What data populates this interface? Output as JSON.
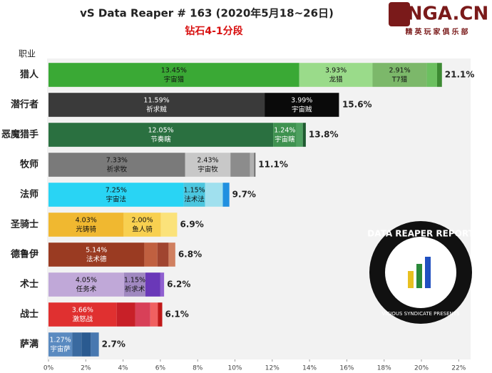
{
  "chart_data": {
    "type": "bar",
    "orientation": "horizontal",
    "stacked": true,
    "title": "vS Data Reaper # 163 (2020年5月18~26日)",
    "subtitle": "钻石4-1分段",
    "ylabel": "职业",
    "categories": [
      "猎人",
      "潜行者",
      "恶魔猎手",
      "牧师",
      "法师",
      "圣骑士",
      "德鲁伊",
      "术士",
      "战士",
      "萨满"
    ],
    "totals": [
      21.1,
      15.6,
      13.8,
      11.1,
      9.7,
      6.9,
      6.8,
      6.2,
      6.1,
      2.7
    ],
    "total_labels": [
      "21.1%",
      "15.6%",
      "13.8%",
      "11.1%",
      "9.7%",
      "6.9%",
      "6.8%",
      "6.2%",
      "6.1%",
      "2.7%"
    ],
    "stacks": [
      {
        "values": [
          13.45,
          3.93,
          2.91,
          0.55,
          0.26
        ],
        "value_labels": [
          "13.45%",
          "3.93%",
          "2.91%",
          null,
          null
        ],
        "names": [
          "宇宙猎",
          "龙猎",
          "T7猎",
          null,
          null
        ],
        "colors": [
          "#3aa935",
          "#9adb8a",
          "#7cb86a",
          "#6cc060",
          "#3d8a33"
        ]
      },
      {
        "values": [
          11.59,
          3.99
        ],
        "value_labels": [
          "11.59%",
          "3.99%"
        ],
        "names": [
          "祈求贼",
          "宇宙贼"
        ],
        "colors": [
          "#3a3a3a",
          "#0a0a0a"
        ]
      },
      {
        "values": [
          12.05,
          1.24,
          0.35,
          0.16
        ],
        "value_labels": [
          "12.05%",
          "1.24%",
          null,
          null
        ],
        "names": [
          "节奏瞎",
          "宇宙瞎",
          null,
          null
        ],
        "colors": [
          "#2a7040",
          "#3f9250",
          "#4ea060",
          "#1e5a30"
        ]
      },
      {
        "values": [
          7.33,
          2.43,
          1.05,
          0.22,
          0.07
        ],
        "value_labels": [
          "7.33%",
          "2.43%",
          null,
          null,
          null
        ],
        "names": [
          "祈求牧",
          "宇宙牧",
          null,
          null,
          null
        ],
        "colors": [
          "#7a7a7a",
          "#c8c8c8",
          "#8c8c8c",
          "#b0b0b0",
          "#666666"
        ]
      },
      {
        "values": [
          7.25,
          1.15,
          0.95,
          0.35
        ],
        "value_labels": [
          "7.25%",
          "1.15%",
          null,
          null
        ],
        "names": [
          "宇宙法",
          "法术法",
          null,
          null
        ],
        "colors": [
          "#29d4f4",
          "#4cc6de",
          "#a0e0ee",
          "#2090e0"
        ]
      },
      {
        "values": [
          4.03,
          2.0,
          0.87
        ],
        "value_labels": [
          "4.03%",
          "2.00%",
          null
        ],
        "names": [
          "光铸骑",
          "鱼人骑",
          null
        ],
        "colors": [
          "#f0b830",
          "#f8d050",
          "#fbe27a"
        ]
      },
      {
        "values": [
          5.14,
          0.7,
          0.6,
          0.36
        ],
        "value_labels": [
          "5.14%",
          null,
          null,
          null
        ],
        "names": [
          "法术德",
          null,
          null,
          null
        ],
        "colors": [
          "#9a3b22",
          "#c06040",
          "#a04530",
          "#d08060"
        ]
      },
      {
        "values": [
          4.05,
          1.15,
          0.8,
          0.2
        ],
        "value_labels": [
          "4.05%",
          "1.15%",
          null,
          null
        ],
        "names": [
          "任务术",
          "祈求术",
          null,
          null
        ],
        "colors": [
          "#c0a8d8",
          "#a088c0",
          "#6a38b8",
          "#9060d0"
        ]
      },
      {
        "values": [
          3.66,
          1.0,
          0.8,
          0.4,
          0.24
        ],
        "value_labels": [
          "3.66%",
          null,
          null,
          null,
          null
        ],
        "names": [
          "激怒战",
          null,
          null,
          null,
          null
        ],
        "colors": [
          "#e03030",
          "#c82028",
          "#d84058",
          "#f06060",
          "#c01818"
        ]
      },
      {
        "values": [
          1.27,
          0.5,
          0.5,
          0.43
        ],
        "value_labels": [
          "1.27%",
          null,
          null,
          null
        ],
        "names": [
          "宇宙萨",
          null,
          null,
          null
        ],
        "colors": [
          "#5a8ac0",
          "#3a6aa0",
          "#2a5a90",
          "#4878b0"
        ]
      }
    ],
    "xlim": [
      0,
      22.6
    ],
    "xticks": [
      {
        "value": 0,
        "label": "0%"
      },
      {
        "value": 2,
        "label": "2%"
      },
      {
        "value": 4,
        "label": "4%"
      },
      {
        "value": 6,
        "label": "6%"
      },
      {
        "value": 8,
        "label": "8%"
      },
      {
        "value": 10,
        "label": "10%"
      },
      {
        "value": 12,
        "label": "12%"
      },
      {
        "value": 14,
        "label": "14%"
      },
      {
        "value": 16,
        "label": "16%"
      },
      {
        "value": 18,
        "label": "18%"
      },
      {
        "value": 20,
        "label": "20%"
      },
      {
        "value": 22,
        "label": "22%"
      }
    ]
  },
  "logo": {
    "site": "NGA.CN",
    "slogan": "精英玩家俱乐部"
  },
  "badge": {
    "title": "DATA REAPER REPORT",
    "subtitle": "VICIOUS SYNDICATE PRESENTS"
  }
}
